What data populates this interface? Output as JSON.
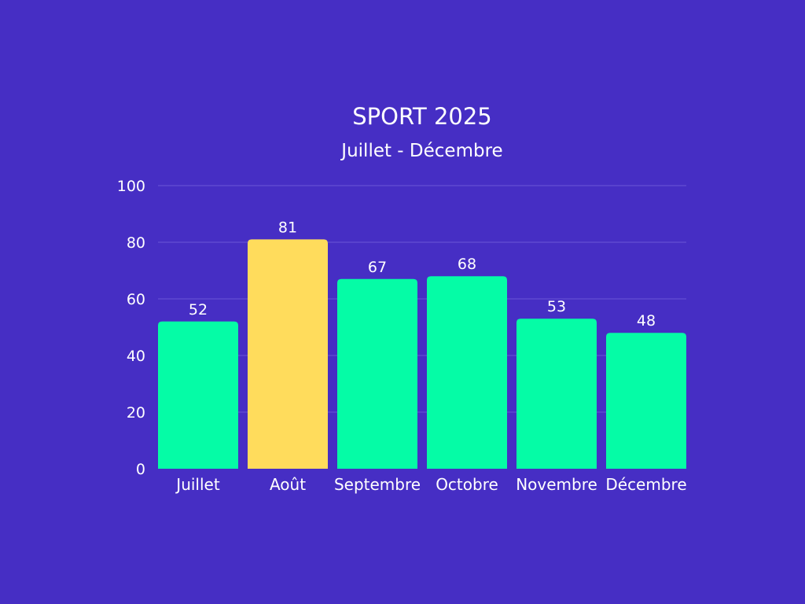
{
  "colors": {
    "background": "#462ec4",
    "bar": "#05fca6",
    "highlight_bar": "#ffdc5c",
    "text": "#ffffff",
    "gridline": "#6a55d6"
  },
  "chart_data": {
    "type": "bar",
    "title": "SPORT 2025",
    "subtitle": "Juillet - Décembre",
    "xlabel": "",
    "ylabel": "",
    "categories": [
      "Juillet",
      "Août",
      "Septembre",
      "Octobre",
      "Novembre",
      "Décembre"
    ],
    "values": [
      52,
      81,
      67,
      68,
      53,
      48
    ],
    "highlight": "Août",
    "ylim": [
      0,
      100
    ],
    "yticks": [
      0,
      20,
      40,
      60,
      80,
      100
    ],
    "grid": true,
    "data_labels": true,
    "legend": "none"
  }
}
